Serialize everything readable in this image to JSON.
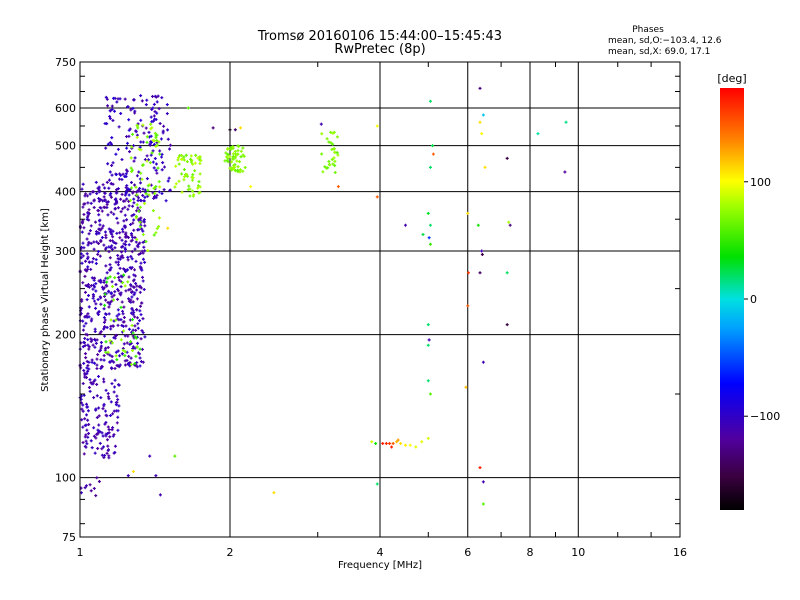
{
  "chart_data": {
    "type": "scatter",
    "title": "Tromsø 20160106 15:44:00–15:45:43",
    "subtitle": "RwPretec (8p)",
    "xlabel": "Frequency [MHz]",
    "ylabel": "Stationary phase Virtual Height [km]",
    "x_scale": "log",
    "y_scale": "log",
    "xlim": [
      1,
      16
    ],
    "ylim": [
      75,
      750
    ],
    "x_ticks": [
      1,
      2,
      4,
      6,
      8,
      10,
      16
    ],
    "x_tick_labels": [
      "1",
      "2",
      "4",
      "6",
      "8",
      "10",
      "16"
    ],
    "y_ticks": [
      75,
      100,
      200,
      300,
      400,
      500,
      600,
      750
    ],
    "y_tick_labels": [
      "75",
      "100",
      "200",
      "300",
      "400",
      "500",
      "600",
      "750"
    ],
    "grid": true,
    "stats": {
      "header": "Phases",
      "line_o": "mean, sd,O:−103.4, 12.6",
      "line_x": "mean, sd,X:  69.0, 17.1"
    },
    "colorbar": {
      "label": "[deg]",
      "range": [
        -180,
        180
      ],
      "ticks": [
        -100,
        0,
        100
      ],
      "tick_labels": [
        "−100",
        "0",
        "100"
      ]
    },
    "clusters": [
      {
        "name": "o-F-trace-low",
        "freq": [
          1.0,
          1.35
        ],
        "height": [
          170,
          420
        ],
        "phase": -110,
        "spread": 12,
        "count": 620
      },
      {
        "name": "o-F-trace-high",
        "freq": [
          1.12,
          1.52
        ],
        "height": [
          380,
          640
        ],
        "phase": -105,
        "spread": 12,
        "count": 180
      },
      {
        "name": "x-F-trace-a",
        "freq": [
          1.25,
          1.45
        ],
        "height": [
          300,
          560
        ],
        "phase": 72,
        "spread": 15,
        "count": 70
      },
      {
        "name": "x-F-trace-b",
        "freq": [
          1.55,
          1.75
        ],
        "height": [
          390,
          480
        ],
        "phase": 75,
        "spread": 12,
        "count": 55
      },
      {
        "name": "x-F-trace-c",
        "freq": [
          1.95,
          2.15
        ],
        "height": [
          440,
          500
        ],
        "phase": 72,
        "spread": 10,
        "count": 55
      },
      {
        "name": "x-F-trace-d",
        "freq": [
          3.05,
          3.3
        ],
        "height": [
          430,
          540
        ],
        "phase": 70,
        "spread": 10,
        "count": 30
      },
      {
        "name": "x-low-trace",
        "freq": [
          1.12,
          1.32
        ],
        "height": [
          170,
          270
        ],
        "phase": 60,
        "spread": 20,
        "count": 40
      },
      {
        "name": "o-low-trace",
        "freq": [
          1.0,
          1.2
        ],
        "height": [
          110,
          170
        ],
        "phase": -110,
        "spread": 10,
        "count": 140
      },
      {
        "name": "o-E-cusp",
        "freq": [
          1.0,
          1.1
        ],
        "height": [
          90,
          100
        ],
        "phase": -115,
        "spread": 10,
        "count": 10
      }
    ],
    "points": [
      {
        "f": 4.05,
        "h": 118,
        "phase": 170
      },
      {
        "f": 4.12,
        "h": 118,
        "phase": 165
      },
      {
        "f": 4.18,
        "h": 118,
        "phase": 160
      },
      {
        "f": 4.25,
        "h": 118,
        "phase": 150
      },
      {
        "f": 4.32,
        "h": 119,
        "phase": 120
      },
      {
        "f": 4.4,
        "h": 118,
        "phase": 110
      },
      {
        "f": 4.5,
        "h": 117,
        "phase": 105
      },
      {
        "f": 4.6,
        "h": 117,
        "phase": 100
      },
      {
        "f": 4.72,
        "h": 116,
        "phase": 95
      },
      {
        "f": 4.85,
        "h": 119,
        "phase": 95
      },
      {
        "f": 5.0,
        "h": 121,
        "phase": 90
      },
      {
        "f": 3.92,
        "h": 118,
        "phase": 40
      },
      {
        "f": 3.85,
        "h": 119,
        "phase": 90
      },
      {
        "f": 4.22,
        "h": 116,
        "phase": 168
      },
      {
        "f": 4.35,
        "h": 120,
        "phase": 130
      },
      {
        "f": 5.05,
        "h": 620,
        "phase": 20
      },
      {
        "f": 5.1,
        "h": 500,
        "phase": 25
      },
      {
        "f": 5.12,
        "h": 480,
        "phase": 150
      },
      {
        "f": 5.05,
        "h": 450,
        "phase": 20
      },
      {
        "f": 5.0,
        "h": 360,
        "phase": 30
      },
      {
        "f": 5.05,
        "h": 340,
        "phase": 20
      },
      {
        "f": 4.88,
        "h": 325,
        "phase": 25
      },
      {
        "f": 5.02,
        "h": 320,
        "phase": -60
      },
      {
        "f": 5.05,
        "h": 310,
        "phase": 50
      },
      {
        "f": 5.0,
        "h": 210,
        "phase": 20
      },
      {
        "f": 5.02,
        "h": 195,
        "phase": -110
      },
      {
        "f": 5.0,
        "h": 190,
        "phase": 20
      },
      {
        "f": 5.0,
        "h": 160,
        "phase": 20
      },
      {
        "f": 5.05,
        "h": 150,
        "phase": 60
      },
      {
        "f": 4.5,
        "h": 340,
        "phase": -110
      },
      {
        "f": 3.95,
        "h": 390,
        "phase": 150
      },
      {
        "f": 3.95,
        "h": 550,
        "phase": 100
      },
      {
        "f": 3.95,
        "h": 97,
        "phase": 20
      },
      {
        "f": 6.0,
        "h": 360,
        "phase": 110
      },
      {
        "f": 6.02,
        "h": 270,
        "phase": 160
      },
      {
        "f": 6.0,
        "h": 230,
        "phase": 150
      },
      {
        "f": 5.95,
        "h": 155,
        "phase": 120
      },
      {
        "f": 6.35,
        "h": 660,
        "phase": -130
      },
      {
        "f": 6.35,
        "h": 560,
        "phase": 110
      },
      {
        "f": 6.4,
        "h": 530,
        "phase": 100
      },
      {
        "f": 6.45,
        "h": 580,
        "phase": -10
      },
      {
        "f": 6.4,
        "h": 300,
        "phase": -110
      },
      {
        "f": 6.42,
        "h": 295,
        "phase": -150
      },
      {
        "f": 6.35,
        "h": 270,
        "phase": -140
      },
      {
        "f": 6.45,
        "h": 175,
        "phase": -110
      },
      {
        "f": 6.35,
        "h": 105,
        "phase": 170
      },
      {
        "f": 6.45,
        "h": 98,
        "phase": -110
      },
      {
        "f": 6.45,
        "h": 88,
        "phase": 60
      },
      {
        "f": 6.5,
        "h": 450,
        "phase": 110
      },
      {
        "f": 6.3,
        "h": 340,
        "phase": 40
      },
      {
        "f": 7.2,
        "h": 470,
        "phase": -150
      },
      {
        "f": 7.25,
        "h": 345,
        "phase": 80
      },
      {
        "f": 7.3,
        "h": 340,
        "phase": -130
      },
      {
        "f": 7.2,
        "h": 270,
        "phase": 20
      },
      {
        "f": 7.2,
        "h": 210,
        "phase": -150
      },
      {
        "f": 8.3,
        "h": 530,
        "phase": 10
      },
      {
        "f": 9.45,
        "h": 560,
        "phase": 15
      },
      {
        "f": 9.4,
        "h": 440,
        "phase": -120
      },
      {
        "f": 2.05,
        "h": 540,
        "phase": -140
      },
      {
        "f": 2.1,
        "h": 545,
        "phase": 110
      },
      {
        "f": 1.85,
        "h": 545,
        "phase": -130
      },
      {
        "f": 2.2,
        "h": 410,
        "phase": 100
      },
      {
        "f": 3.3,
        "h": 410,
        "phase": 150
      },
      {
        "f": 3.05,
        "h": 555,
        "phase": -110
      },
      {
        "f": 2.45,
        "h": 93,
        "phase": 110
      },
      {
        "f": 1.55,
        "h": 111,
        "phase": 60
      },
      {
        "f": 1.38,
        "h": 111,
        "phase": -110
      },
      {
        "f": 1.28,
        "h": 103,
        "phase": 110
      },
      {
        "f": 1.25,
        "h": 101,
        "phase": -110
      },
      {
        "f": 1.42,
        "h": 101,
        "phase": -110
      },
      {
        "f": 1.5,
        "h": 335,
        "phase": 110
      },
      {
        "f": 1.65,
        "h": 600,
        "phase": 60
      },
      {
        "f": 1.45,
        "h": 92,
        "phase": -110
      },
      {
        "f": 2.0,
        "h": 540,
        "phase": -170
      }
    ]
  }
}
